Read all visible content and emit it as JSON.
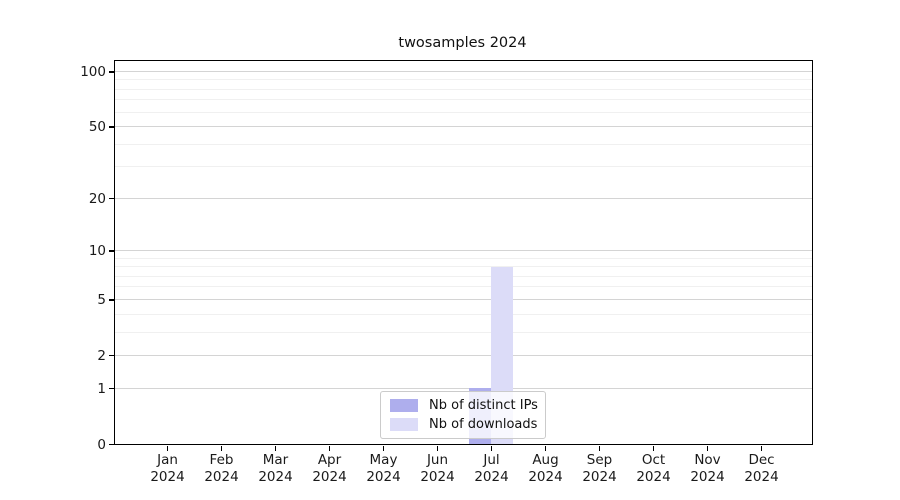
{
  "figure": {
    "background": "#ffffff"
  },
  "chart_data": {
    "type": "bar",
    "title": "twosamples 2024",
    "months": [
      "Jan",
      "Feb",
      "Mar",
      "Apr",
      "May",
      "Jun",
      "Jul",
      "Aug",
      "Sep",
      "Oct",
      "Nov",
      "Dec"
    ],
    "year": "2024",
    "categories": [
      "Jan 2024",
      "Feb 2024",
      "Mar 2024",
      "Apr 2024",
      "May 2024",
      "Jun 2024",
      "Jul 2024",
      "Aug 2024",
      "Sep 2024",
      "Oct 2024",
      "Nov 2024",
      "Dec 2024"
    ],
    "series": [
      {
        "name": "Nb of distinct IPs",
        "color": "#aeaeed",
        "values": [
          0,
          0,
          0,
          0,
          0,
          0,
          1,
          0,
          0,
          0,
          0,
          0
        ]
      },
      {
        "name": "Nb of downloads",
        "color": "#dcdcf8",
        "values": [
          0,
          0,
          0,
          0,
          0,
          0,
          8,
          0,
          0,
          0,
          0,
          0
        ]
      }
    ],
    "xlabel": "",
    "ylabel": "",
    "yscale": "log1p",
    "ylim": [
      0,
      114
    ],
    "yticks": [
      0,
      1,
      2,
      5,
      10,
      20,
      50,
      100
    ],
    "yticks_minor": [
      3,
      4,
      6,
      7,
      8,
      9,
      30,
      40,
      60,
      70,
      80,
      90
    ],
    "grid": {
      "enabled": true,
      "major_color": "#d4d4d4",
      "minor_color": "#f0f0f0"
    },
    "axis_color": "#000000",
    "legend": {
      "position": "lower center",
      "labels": [
        "Nb of distinct IPs",
        "Nb of downloads"
      ]
    }
  }
}
